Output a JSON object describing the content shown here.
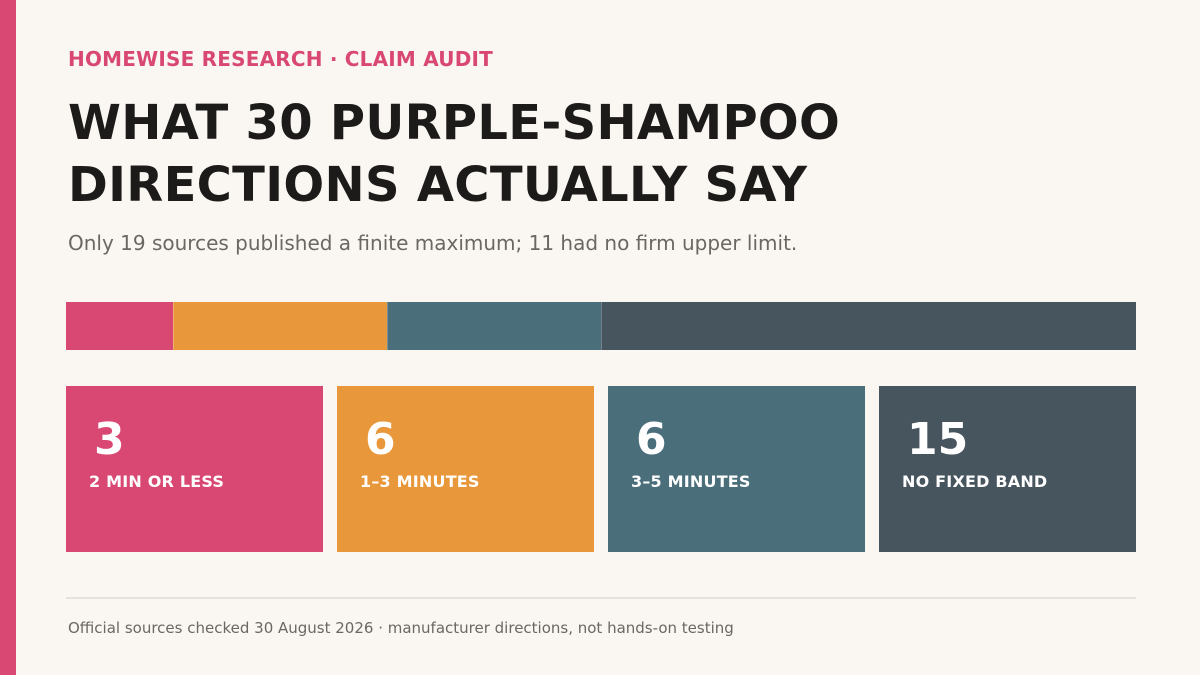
{
  "colors": {
    "accent": "#d94873",
    "background": "#faf7f2"
  },
  "header": {
    "kicker": "HOMEWISE RESEARCH · CLAIM AUDIT",
    "title_line1": "WHAT 30 PURPLE-SHAMPOO",
    "title_line2": "DIRECTIONS ACTUALLY SAY",
    "subtitle": "Only 19 sources published a finite maximum; 11 had no firm upper limit."
  },
  "chart_data": {
    "type": "bar",
    "orientation": "stacked-horizontal",
    "categories": [
      "2 MIN OR LESS",
      "1–3 MINUTES",
      "3–5 MINUTES",
      "NO FIXED BAND"
    ],
    "values": [
      3,
      6,
      6,
      15
    ],
    "colors": [
      "#d94873",
      "#e8973a",
      "#4a6f7a",
      "#47555f"
    ],
    "legend": "cards-below"
  },
  "footer": {
    "note": "Official sources checked 30 August 2026 · manufacturer directions, not hands-on testing"
  }
}
